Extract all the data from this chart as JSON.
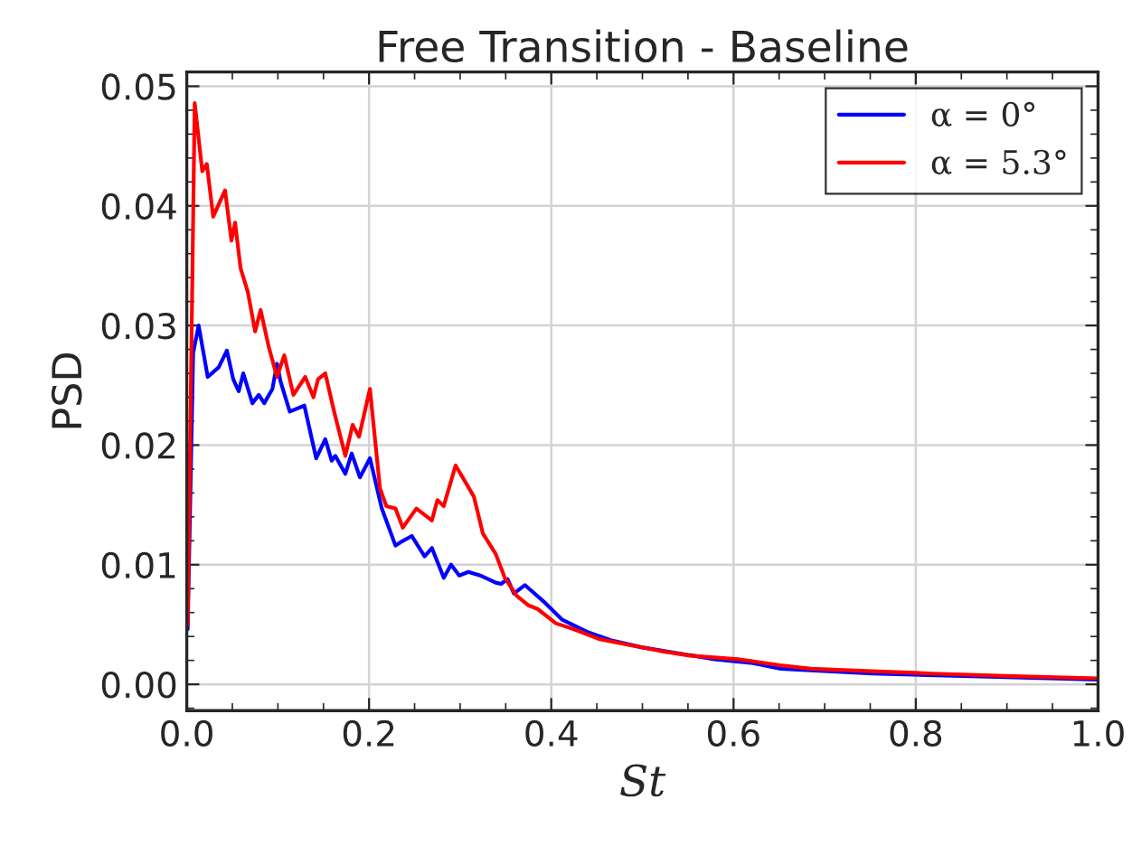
{
  "chart_data": {
    "type": "line",
    "title": "Free Transition - Baseline",
    "xlabel": "St",
    "ylabel": "PSD",
    "xlim": [
      0,
      1
    ],
    "ylim": [
      -0.0022,
      0.0512
    ],
    "xticks": [
      {
        "value": 0,
        "label": "0.0"
      },
      {
        "value": 0.2,
        "label": "0.2"
      },
      {
        "value": 0.4,
        "label": "0.4"
      },
      {
        "value": 0.6,
        "label": "0.6"
      },
      {
        "value": 0.8,
        "label": "0.8"
      },
      {
        "value": 1,
        "label": "1.0"
      }
    ],
    "yticks": [
      {
        "value": 0,
        "label": "0.00"
      },
      {
        "value": 0.01,
        "label": "0.01"
      },
      {
        "value": 0.02,
        "label": "0.02"
      },
      {
        "value": 0.03,
        "label": "0.03"
      },
      {
        "value": 0.04,
        "label": "0.04"
      },
      {
        "value": 0.05,
        "label": "0.05"
      }
    ],
    "grid": true,
    "legend": "top right",
    "line_style": "solid",
    "marker": "none",
    "series": [
      {
        "name": "α = 0°",
        "color": "#0000ff",
        "x": [
          0.001,
          0.007,
          0.013,
          0.023,
          0.035,
          0.044,
          0.051,
          0.057,
          0.062,
          0.072,
          0.079,
          0.085,
          0.094,
          0.099,
          0.103,
          0.113,
          0.129,
          0.142,
          0.152,
          0.159,
          0.163,
          0.174,
          0.181,
          0.19,
          0.201,
          0.214,
          0.229,
          0.235,
          0.247,
          0.261,
          0.269,
          0.282,
          0.29,
          0.299,
          0.309,
          0.322,
          0.339,
          0.345,
          0.352,
          0.359,
          0.371,
          0.392,
          0.412,
          0.439,
          0.465,
          0.499,
          0.539,
          0.579,
          0.619,
          0.652,
          0.752,
          0.852,
          1.0
        ],
        "values": [
          0.0046,
          0.0277,
          0.03,
          0.0257,
          0.0265,
          0.0279,
          0.0255,
          0.0245,
          0.026,
          0.0235,
          0.0242,
          0.0235,
          0.0247,
          0.0268,
          0.0253,
          0.0228,
          0.0233,
          0.0189,
          0.0205,
          0.0187,
          0.0191,
          0.0176,
          0.0193,
          0.0173,
          0.0189,
          0.0147,
          0.0116,
          0.0119,
          0.0124,
          0.0107,
          0.0114,
          0.0089,
          0.01,
          0.0091,
          0.0094,
          0.0091,
          0.0085,
          0.0084,
          0.0088,
          0.0076,
          0.0083,
          0.0069,
          0.0054,
          0.0044,
          0.0037,
          0.0031,
          0.0026,
          0.0021,
          0.0018,
          0.0013,
          0.0009,
          0.0007,
          0.0004
        ]
      },
      {
        "name": "α = 5.3°",
        "color": "#ff0000",
        "x": [
          0.001,
          0.0087,
          0.017,
          0.022,
          0.029,
          0.042,
          0.049,
          0.053,
          0.059,
          0.067,
          0.075,
          0.081,
          0.09,
          0.099,
          0.107,
          0.117,
          0.13,
          0.139,
          0.144,
          0.152,
          0.162,
          0.174,
          0.182,
          0.189,
          0.201,
          0.212,
          0.219,
          0.229,
          0.237,
          0.252,
          0.269,
          0.275,
          0.282,
          0.295,
          0.315,
          0.325,
          0.339,
          0.349,
          0.362,
          0.375,
          0.385,
          0.405,
          0.425,
          0.452,
          0.485,
          0.519,
          0.552,
          0.605,
          0.651,
          0.685,
          0.752,
          0.818,
          0.898,
          1.0
        ],
        "values": [
          0.005,
          0.0486,
          0.0429,
          0.0435,
          0.0391,
          0.0413,
          0.0371,
          0.0386,
          0.0348,
          0.0328,
          0.0295,
          0.0313,
          0.0282,
          0.0257,
          0.0275,
          0.0242,
          0.0257,
          0.024,
          0.0255,
          0.026,
          0.0227,
          0.0191,
          0.0217,
          0.0207,
          0.0247,
          0.0164,
          0.0149,
          0.0147,
          0.0131,
          0.0147,
          0.0137,
          0.0154,
          0.0149,
          0.0183,
          0.0157,
          0.0126,
          0.0109,
          0.0089,
          0.0074,
          0.0066,
          0.0063,
          0.0051,
          0.0046,
          0.0038,
          0.0033,
          0.0028,
          0.0024,
          0.0021,
          0.0016,
          0.0013,
          0.0011,
          0.0009,
          0.0007,
          0.0005
        ]
      }
    ]
  }
}
